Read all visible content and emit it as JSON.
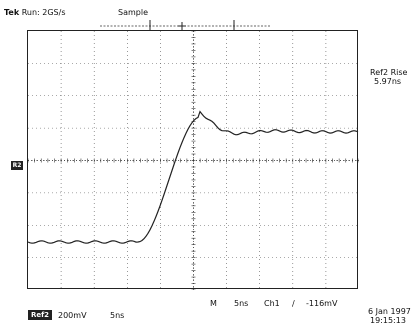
{
  "header": {
    "brand": "Tek",
    "run_status": "Run: 2GS/s",
    "acq_mode": "Sample"
  },
  "measurement": {
    "label": "Ref2 Rise",
    "value": "5.97ns"
  },
  "channel_marker": "R2",
  "footer": {
    "ref_tag": "Ref2",
    "ref_volts": "200mV",
    "ref_time": "5ns",
    "m_label": "M",
    "timebase": "5ns",
    "trigger_source": "Ch1",
    "trigger_slope": "∕",
    "trigger_level": "-116mV",
    "date": "6 Jan 1997",
    "time": "19:15:13"
  },
  "trace": {
    "color": "#222222",
    "grid_color": "#555555"
  }
}
